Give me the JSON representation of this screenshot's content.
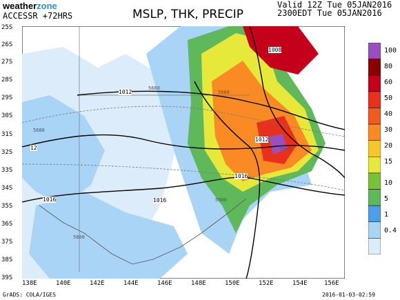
{
  "header": {
    "brand_part1": "weather",
    "brand_part2": "zone",
    "model": "ACCESSR +72HRS",
    "title": "MSLP, THK, PRECIP",
    "valid_line1": "Valid 12Z Tue 05JAN2016",
    "valid_line2": "2300EDT Tue 05JAN2016"
  },
  "map": {
    "lat_labels": [
      "25S",
      "26S",
      "27S",
      "28S",
      "29S",
      "30S",
      "31S",
      "32S",
      "33S",
      "34S",
      "35S",
      "36S",
      "37S",
      "38S",
      "39S"
    ],
    "lon_labels": [
      "138E",
      "140E",
      "142E",
      "144E",
      "146E",
      "148E",
      "150E",
      "152E",
      "154E",
      "156E"
    ],
    "isobar_labels": [
      "1008",
      "1012",
      "1012",
      "1016",
      "1016",
      "1016",
      "12"
    ],
    "thickness_labels": [
      "5680",
      "5680",
      "5680",
      "5640",
      "5800",
      "5800"
    ]
  },
  "colorbar": {
    "labels": [
      "100",
      "80",
      "60",
      "50",
      "40",
      "30",
      "20",
      "15",
      "10",
      "5",
      "1",
      "0.4"
    ],
    "colors": [
      "#9b4fbf",
      "#8b0000",
      "#c4001a",
      "#e8301c",
      "#f25a1e",
      "#f98a24",
      "#f7c629",
      "#e6e83a",
      "#78c23a",
      "#5fb85a",
      "#4da0e8",
      "#a9d4f6",
      "#dcecfb"
    ]
  },
  "footer": {
    "credit": "GrADS: COLA/IGES",
    "timestamp": "2016-01-03-02:59"
  }
}
